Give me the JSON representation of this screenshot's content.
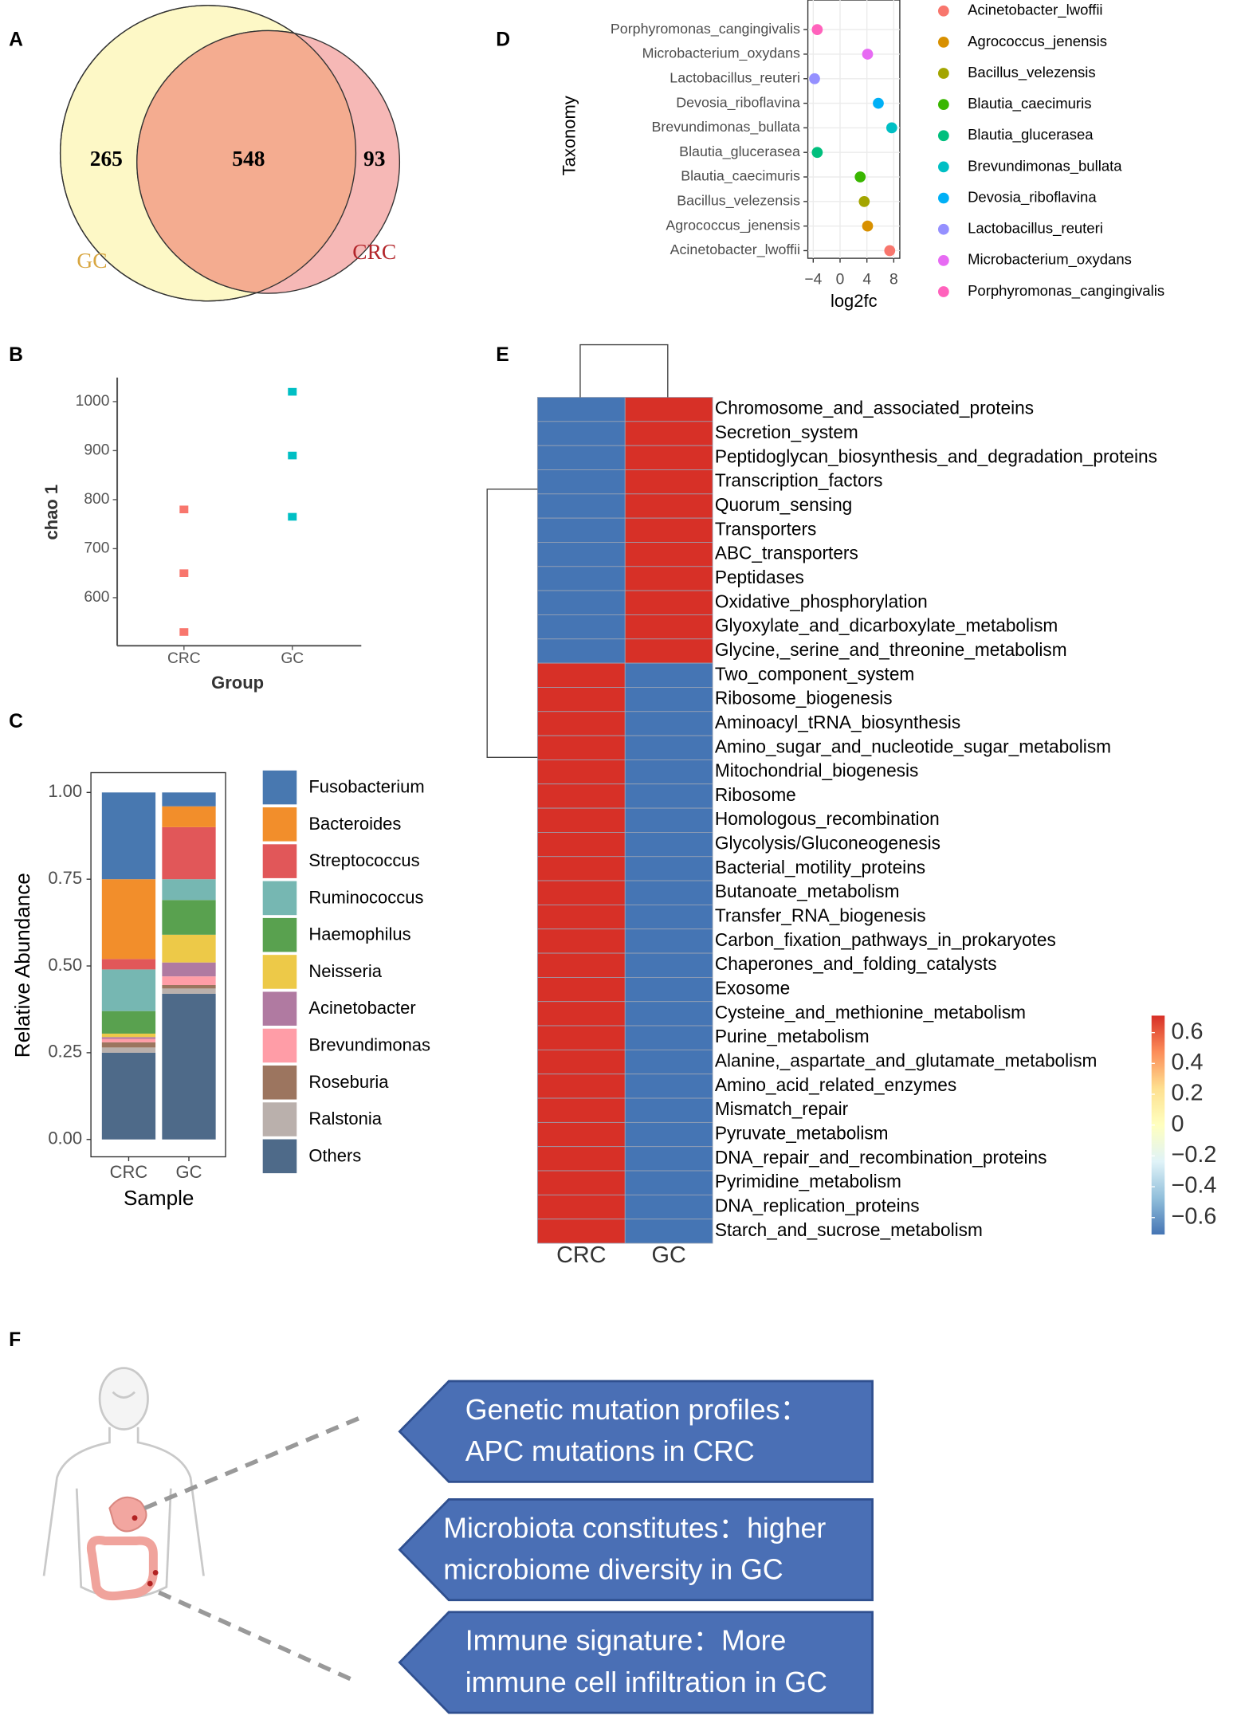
{
  "chart_data": [
    {
      "type": "venn",
      "panel": "A",
      "sets": [
        {
          "name": "GC",
          "color": "#fdf8c6",
          "label_color": "#d8a640"
        },
        {
          "name": "CRC",
          "color": "#f6b8b6",
          "label_color": "#b3262b"
        }
      ],
      "overlap_color": "#f4ac90",
      "values": [
        265,
        548,
        93
      ]
    },
    {
      "type": "dot",
      "panel": "D",
      "y_label": "Taxonomy",
      "x_label": "log2fc",
      "categories": [
        "Acinetobacter_lwoffii",
        "Agrococcus_jenensis",
        "Bacillus_velezensis",
        "Blautia_caecimuris",
        "Blautia_glucerasea",
        "Brevundimonas_bullata",
        "Devosia_riboflavina",
        "Lactobacillus_reuteri",
        "Microbacterium_oxydans",
        "Porphyromonas_cangingivalis"
      ],
      "values": [
        7.4,
        4.1,
        3.6,
        3.0,
        -3.4,
        7.7,
        5.7,
        -3.8,
        4.1,
        -3.4
      ],
      "colors": [
        "#f8766d",
        "#d89000",
        "#a3a500",
        "#39b600",
        "#00bf7d",
        "#00bfc4",
        "#00b0f6",
        "#9590ff",
        "#e76bf3",
        "#ff62bc"
      ],
      "xlim": [
        -4.8,
        8.9
      ],
      "xticks": [
        {
          "value": -4,
          "label": "−4"
        },
        0,
        4,
        8
      ],
      "grid": true
    },
    {
      "type": "strip",
      "panel": "B",
      "y_label": "chao 1",
      "x_label": "Group",
      "series": [
        {
          "name": "CRC",
          "color": "#f8766d",
          "values": [
            780,
            650,
            530
          ]
        },
        {
          "name": "GC",
          "color": "#00bfc4",
          "values": [
            1020,
            890,
            765
          ]
        }
      ],
      "ylim": [
        502,
        1049
      ],
      "yticks": [
        600,
        700,
        800,
        900,
        1000
      ]
    },
    {
      "type": "stacked_bar",
      "panel": "C",
      "y_label": "Relative Abundance",
      "x_label": "Sample",
      "categories": [
        "CRC",
        "GC"
      ],
      "series": [
        {
          "name": "Fusobacterium",
          "color": "#4878b0",
          "values": [
            0.25,
            0.04
          ]
        },
        {
          "name": "Bacteroides",
          "color": "#f28e2b",
          "values": [
            0.23,
            0.06
          ]
        },
        {
          "name": "Streptococcus",
          "color": "#e15759",
          "values": [
            0.03,
            0.15
          ]
        },
        {
          "name": "Ruminococcus",
          "color": "#76b7b2",
          "values": [
            0.12,
            0.06
          ]
        },
        {
          "name": "Haemophilus",
          "color": "#59a14f",
          "values": [
            0.065,
            0.1
          ]
        },
        {
          "name": "Neisseria",
          "color": "#edc948",
          "values": [
            0.01,
            0.08
          ]
        },
        {
          "name": "Acinetobacter",
          "color": "#b07aa1",
          "values": [
            0.005,
            0.04
          ]
        },
        {
          "name": "Brevundimonas",
          "color": "#ff9da7",
          "values": [
            0.01,
            0.025
          ]
        },
        {
          "name": "Roseburia",
          "color": "#9c755f",
          "values": [
            0.015,
            0.01
          ]
        },
        {
          "name": "Ralstonia",
          "color": "#bab0ac",
          "values": [
            0.015,
            0.015
          ]
        },
        {
          "name": "Others",
          "color": "#4e6a89",
          "values": [
            0.25,
            0.42
          ]
        }
      ],
      "ylim": [
        -0.05,
        1.057
      ],
      "yticks": [
        {
          "value": 0,
          "label": "0.00"
        },
        {
          "value": 0.25,
          "label": "0.25"
        },
        {
          "value": 0.5,
          "label": "0.50"
        },
        {
          "value": 0.75,
          "label": "0.75"
        },
        {
          "value": 1,
          "label": "1.00"
        }
      ]
    },
    {
      "type": "heatmap",
      "panel": "E",
      "columns": [
        "CRC",
        "GC"
      ],
      "rows": [
        "Chromosome_and_associated_proteins",
        "Secretion_system",
        "Peptidoglycan_biosynthesis_and_degradation_proteins",
        "Transcription_factors",
        "Quorum_sensing",
        "Transporters",
        "ABC_transporters",
        "Peptidases",
        "Oxidative_phosphorylation",
        "Glyoxylate_and_dicarboxylate_metabolism",
        "Glycine,_serine_and_threonine_metabolism",
        "Two_component_system",
        "Ribosome_biogenesis",
        "Aminoacyl_tRNA_biosynthesis",
        "Amino_sugar_and_nucleotide_sugar_metabolism",
        "Mitochondrial_biogenesis",
        "Ribosome",
        "Homologous_recombination",
        "Glycolysis/Gluconeogenesis",
        "Bacterial_motility_proteins",
        "Butanoate_metabolism",
        "Transfer_RNA_biogenesis",
        "Carbon_fixation_pathways_in_prokaryotes",
        "Chaperones_and_folding_catalysts",
        "Exosome",
        "Cysteine_and_methionine_metabolism",
        "Purine_metabolism",
        "Alanine,_aspartate_and_glutamate_metabolism",
        "Amino_acid_related_enzymes",
        "Mismatch_repair",
        "Pyruvate_metabolism",
        "DNA_repair_and_recombination_proteins",
        "Pyrimidine_metabolism",
        "DNA_replication_proteins",
        "Starch_and_sucrose_metabolism"
      ],
      "values": [
        [
          -0.71,
          0.71
        ],
        [
          -0.71,
          0.71
        ],
        [
          -0.71,
          0.71
        ],
        [
          -0.71,
          0.71
        ],
        [
          -0.71,
          0.71
        ],
        [
          -0.71,
          0.71
        ],
        [
          -0.71,
          0.71
        ],
        [
          -0.71,
          0.71
        ],
        [
          -0.71,
          0.71
        ],
        [
          -0.71,
          0.71
        ],
        [
          -0.71,
          0.71
        ],
        [
          0.71,
          -0.71
        ],
        [
          0.71,
          -0.71
        ],
        [
          0.71,
          -0.71
        ],
        [
          0.71,
          -0.71
        ],
        [
          0.71,
          -0.71
        ],
        [
          0.71,
          -0.71
        ],
        [
          0.71,
          -0.71
        ],
        [
          0.71,
          -0.71
        ],
        [
          0.71,
          -0.71
        ],
        [
          0.71,
          -0.71
        ],
        [
          0.71,
          -0.71
        ],
        [
          0.71,
          -0.71
        ],
        [
          0.71,
          -0.71
        ],
        [
          0.71,
          -0.71
        ],
        [
          0.71,
          -0.71
        ],
        [
          0.71,
          -0.71
        ],
        [
          0.71,
          -0.71
        ],
        [
          0.71,
          -0.71
        ],
        [
          0.71,
          -0.71
        ],
        [
          0.71,
          -0.71
        ],
        [
          0.71,
          -0.71
        ],
        [
          0.71,
          -0.71
        ],
        [
          0.71,
          -0.71
        ],
        [
          0.71,
          -0.71
        ]
      ],
      "colorbar": {
        "lim": [
          -0.71,
          0.71
        ],
        "colors": [
          "#4575b4",
          "#91bfdb",
          "#e0f3f8",
          "#ffffbf",
          "#fee090",
          "#fc8d59",
          "#d73027"
        ],
        "ticks": [
          {
            "value": -0.6,
            "label": "−0.6"
          },
          {
            "value": -0.4,
            "label": "−0.4"
          },
          {
            "value": -0.2,
            "label": "−0.2"
          },
          0,
          0.2,
          0.4,
          0.6
        ]
      }
    }
  ],
  "panel_f": {
    "panel": "F",
    "boxes": [
      {
        "lines": [
          "Genetic mutation profiles：",
          "APC mutations in CRC"
        ]
      },
      {
        "lines": [
          "Microbiota constitutes：higher",
          "microbiome diversity in GC"
        ]
      },
      {
        "lines": [
          "Immune signature：More",
          "immune cell infiltration in GC"
        ]
      }
    ]
  }
}
